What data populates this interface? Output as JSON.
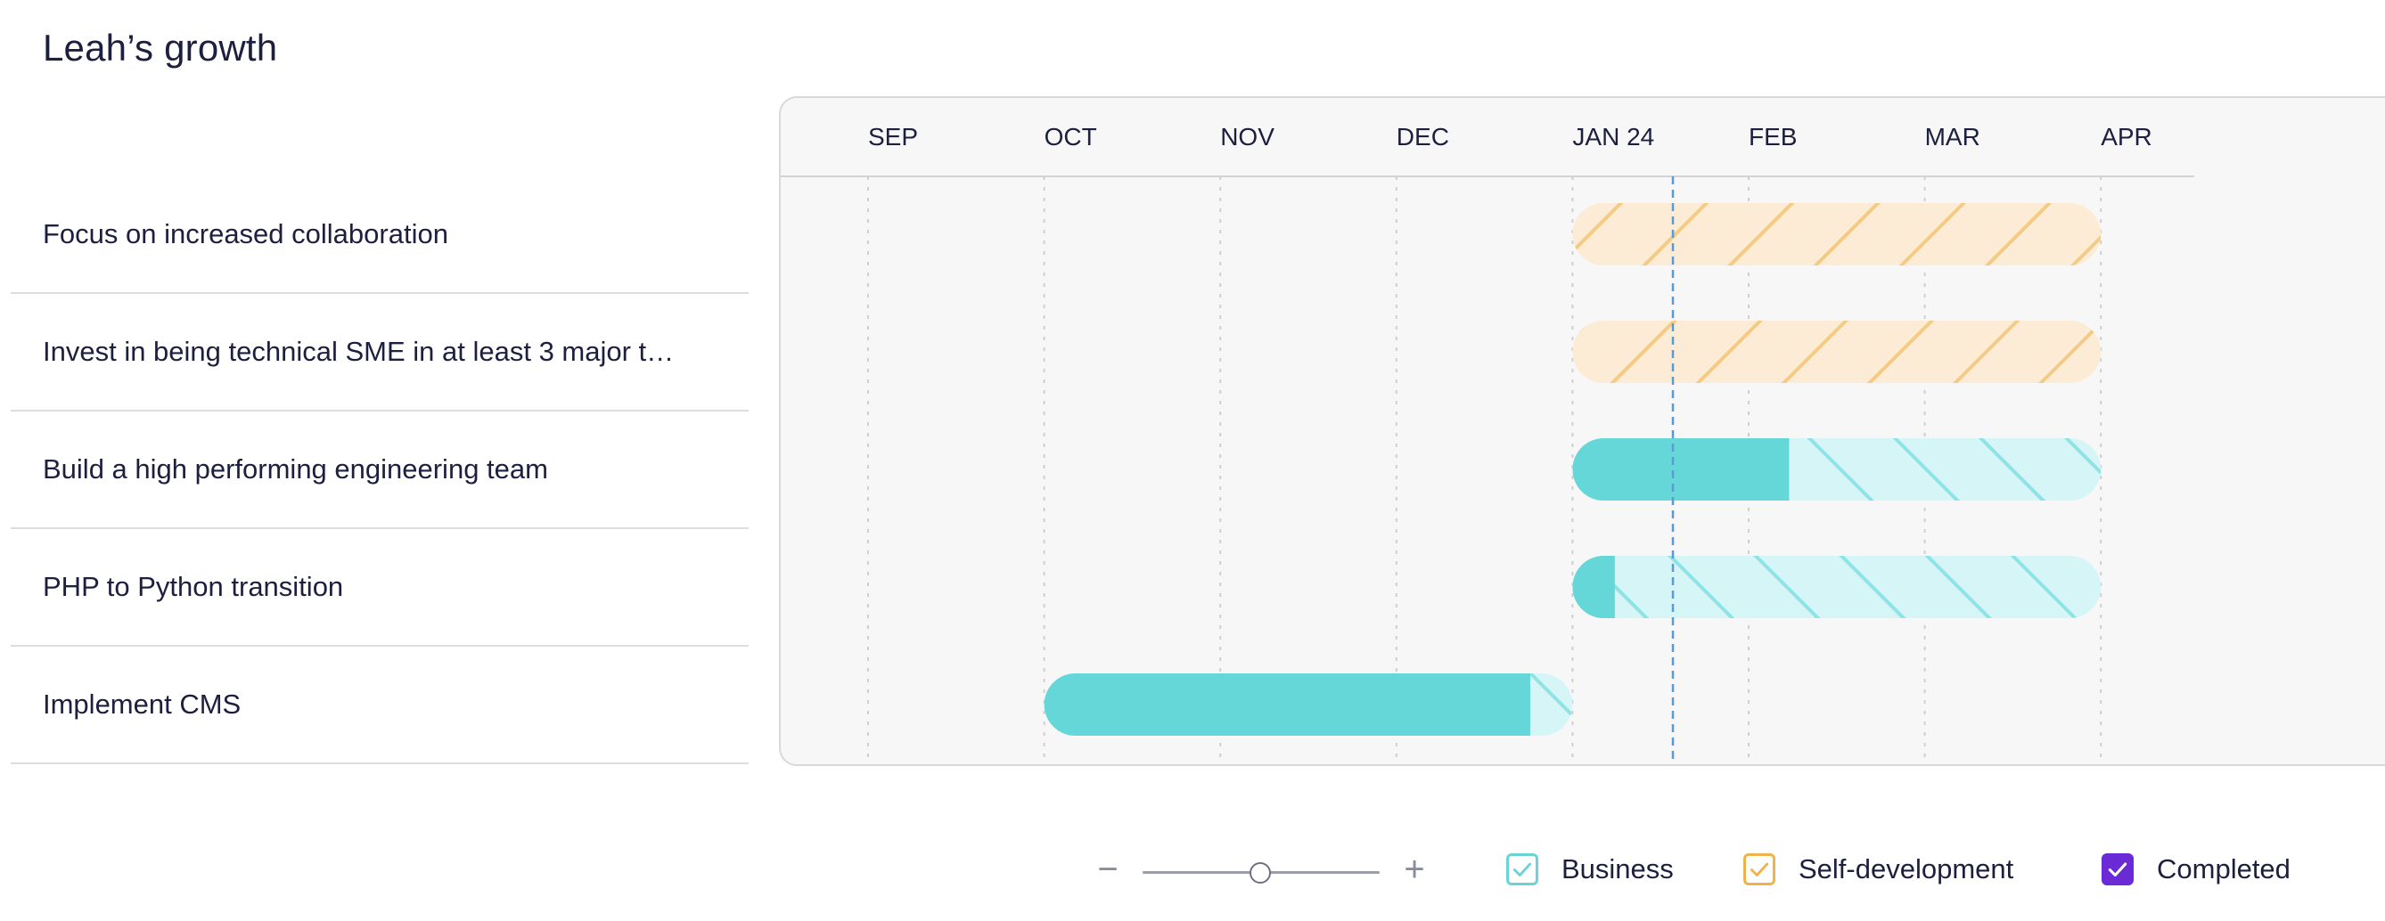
{
  "page": {
    "title": "Leah’s growth"
  },
  "goals": [
    {
      "label": "Focus on increased collaboration"
    },
    {
      "label": "Invest in being technical SME in at least 3 major t…"
    },
    {
      "label": "Build a high performing engineering team"
    },
    {
      "label": "PHP to Python transition"
    },
    {
      "label": "Implement CMS"
    }
  ],
  "timeline": {
    "months": [
      "SEP",
      "OCT",
      "NOV",
      "DEC",
      "JAN 24",
      "FEB",
      "MAR",
      "APR"
    ],
    "today_position_months": 4.57,
    "bars": [
      {
        "goal_index": 0,
        "category": "self-development",
        "start_month": 4.0,
        "end_month": 7.0,
        "completed_fraction": 0.0
      },
      {
        "goal_index": 1,
        "category": "self-development",
        "start_month": 4.0,
        "end_month": 7.0,
        "completed_fraction": 0.0
      },
      {
        "goal_index": 2,
        "category": "business",
        "start_month": 4.0,
        "end_month": 7.0,
        "completed_fraction": 0.41
      },
      {
        "goal_index": 3,
        "category": "business",
        "start_month": 4.0,
        "end_month": 7.0,
        "completed_fraction": 0.08
      },
      {
        "goal_index": 4,
        "category": "business",
        "start_month": 1.0,
        "end_month": 4.0,
        "completed_fraction": 0.92
      }
    ]
  },
  "zoom": {
    "minus_label": "−",
    "plus_label": "+",
    "level_fraction": 0.5
  },
  "legend": {
    "business": {
      "label": "Business",
      "checked": true
    },
    "self_development": {
      "label": "Self-development",
      "checked": true
    },
    "completed": {
      "label": "Completed",
      "checked": true
    }
  },
  "colors": {
    "business_solid": "#66d7d8",
    "business_light": "#d6f5f6",
    "business_stripe": "#8fe3e4",
    "self_dev_light": "#fcecd6",
    "self_dev_stripe": "#f4cb86",
    "today_line": "#5b9bd5",
    "completed_checkbox": "#6a2bd6",
    "business_checkbox": "#6ad3d6",
    "self_dev_checkbox": "#f0b24a"
  },
  "icons": {
    "zoom_minus": "minus-icon",
    "zoom_plus": "plus-icon",
    "checkmark": "check-icon"
  }
}
